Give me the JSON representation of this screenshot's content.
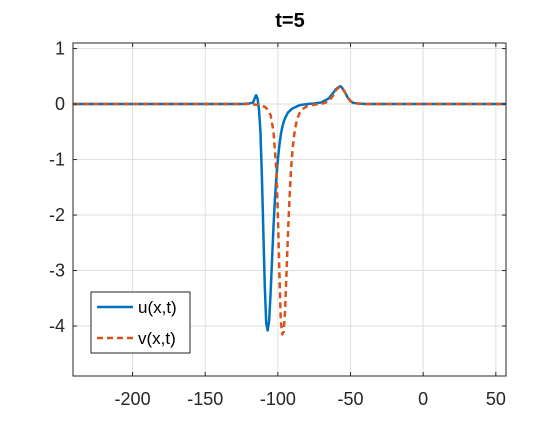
{
  "chart_data": {
    "type": "line",
    "title": "t=5",
    "xlabel": "",
    "ylabel": "",
    "xlim": [
      -241,
      57
    ],
    "ylim": [
      -4.9,
      1.1
    ],
    "xticks": [
      -200,
      -150,
      -100,
      -50,
      0,
      50
    ],
    "xtick_labels": [
      "-200",
      "-150",
      "-100",
      "-50",
      "0",
      "50"
    ],
    "yticks": [
      1,
      0,
      -1,
      -2,
      -3,
      -4
    ],
    "ytick_labels": [
      "1",
      "0",
      "-1",
      "-2",
      "-3",
      "-4"
    ],
    "grid": true,
    "legend": {
      "location": "bottom-left",
      "entries": [
        "u(x,t)",
        "v(x,t)"
      ]
    },
    "series": [
      {
        "name": "u(x,t)",
        "color": "#0072BD",
        "linestyle": "solid",
        "x": [
          -241,
          -125,
          -120,
          -118,
          -117,
          -116,
          -115,
          -114,
          -113,
          -112,
          -111,
          -110,
          -109,
          -108,
          -107,
          -106,
          -105,
          -104,
          -103,
          -102,
          -101,
          -100,
          -99,
          -98,
          -97,
          -96,
          -95,
          -93,
          -90,
          -85,
          -80,
          -75,
          -70,
          -65,
          -62,
          -60,
          -58,
          -57,
          -56,
          -54,
          -52,
          -50,
          -48,
          -45,
          -40,
          57
        ],
        "y": [
          0,
          0,
          0.01,
          0.02,
          0.03,
          0.1,
          0.16,
          0.1,
          -0.1,
          -0.5,
          -1.3,
          -2.3,
          -3.3,
          -3.95,
          -4.08,
          -3.9,
          -3.4,
          -2.8,
          -2.2,
          -1.7,
          -1.3,
          -1.0,
          -0.75,
          -0.55,
          -0.42,
          -0.32,
          -0.25,
          -0.15,
          -0.08,
          -0.02,
          0.0,
          0.01,
          0.03,
          0.1,
          0.2,
          0.27,
          0.31,
          0.32,
          0.3,
          0.22,
          0.12,
          0.05,
          0.02,
          0.01,
          0,
          0
        ]
      },
      {
        "name": "v(x,t)",
        "color": "#D95319",
        "linestyle": "dashed",
        "x": [
          -241,
          -120,
          -112,
          -109,
          -107,
          -105,
          -103,
          -101,
          -100,
          -99,
          -98,
          -97,
          -96,
          -95,
          -94,
          -93,
          -92,
          -91,
          -90,
          -89,
          -88,
          -87,
          -86,
          -85,
          -83,
          -80,
          -75,
          -70,
          -65,
          -62,
          -60,
          -58,
          -57,
          -56,
          -54,
          -52,
          -50,
          -48,
          -45,
          -40,
          57
        ],
        "y": [
          0,
          0,
          -0.02,
          -0.05,
          -0.1,
          -0.2,
          -0.5,
          -1.2,
          -2.0,
          -3.0,
          -3.9,
          -4.15,
          -4.1,
          -3.7,
          -3.0,
          -2.3,
          -1.7,
          -1.2,
          -0.85,
          -0.6,
          -0.42,
          -0.3,
          -0.22,
          -0.16,
          -0.09,
          -0.04,
          -0.01,
          0.0,
          0.05,
          0.15,
          0.25,
          0.3,
          0.31,
          0.29,
          0.22,
          0.12,
          0.05,
          0.02,
          0.01,
          0,
          0
        ]
      }
    ]
  }
}
